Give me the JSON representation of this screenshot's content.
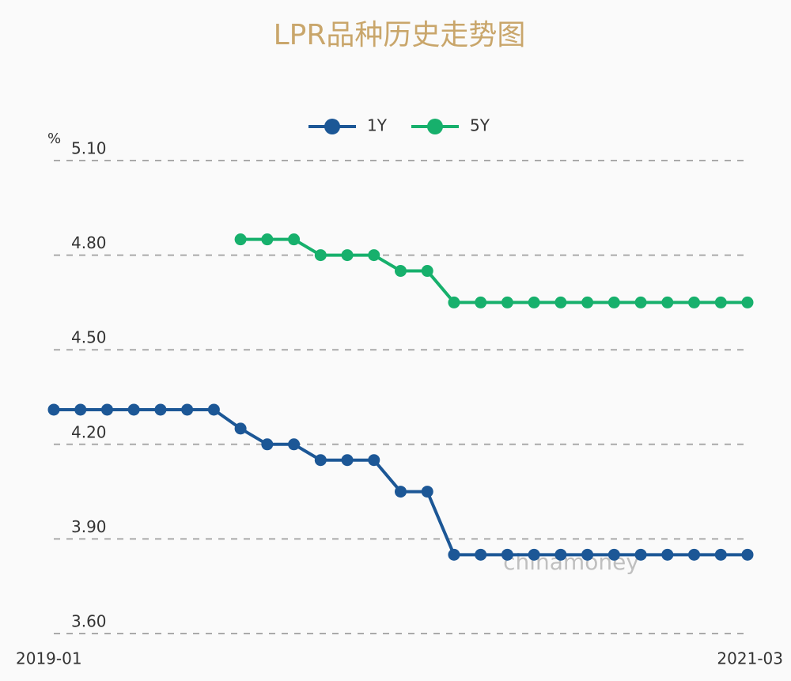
{
  "chart_data": {
    "type": "line",
    "title": "LPR品种历史走势图",
    "y_unit": "%",
    "watermark": "chinamoney",
    "categories": [
      "2019-01",
      null,
      null,
      null,
      null,
      null,
      null,
      null,
      null,
      null,
      null,
      null,
      null,
      null,
      null,
      null,
      null,
      null,
      null,
      null,
      null,
      null,
      null,
      null,
      null,
      null,
      "2021-03"
    ],
    "series": [
      {
        "name": "1Y",
        "color": "#1c5796",
        "values": [
          4.31,
          4.31,
          4.31,
          4.31,
          4.31,
          4.31,
          4.31,
          4.25,
          4.2,
          4.2,
          4.15,
          4.15,
          4.15,
          4.05,
          4.05,
          3.85,
          3.85,
          3.85,
          3.85,
          3.85,
          3.85,
          3.85,
          3.85,
          3.85,
          3.85,
          3.85,
          3.85
        ]
      },
      {
        "name": "5Y",
        "color": "#17b06c",
        "values": [
          null,
          null,
          null,
          null,
          null,
          null,
          null,
          4.85,
          4.85,
          4.85,
          4.8,
          4.8,
          4.8,
          4.75,
          4.75,
          4.65,
          4.65,
          4.65,
          4.65,
          4.65,
          4.65,
          4.65,
          4.65,
          4.65,
          4.65,
          4.65,
          4.65
        ]
      }
    ],
    "ylim": [
      3.6,
      5.1
    ],
    "yticks": [
      {
        "value": 5.1,
        "label": "5.10"
      },
      {
        "value": 4.8,
        "label": "4.80"
      },
      {
        "value": 4.5,
        "label": "4.50"
      },
      {
        "value": 4.2,
        "label": "4.20"
      },
      {
        "value": 3.9,
        "label": "3.90"
      },
      {
        "value": 3.6,
        "label": "3.60"
      }
    ],
    "grid": true
  }
}
